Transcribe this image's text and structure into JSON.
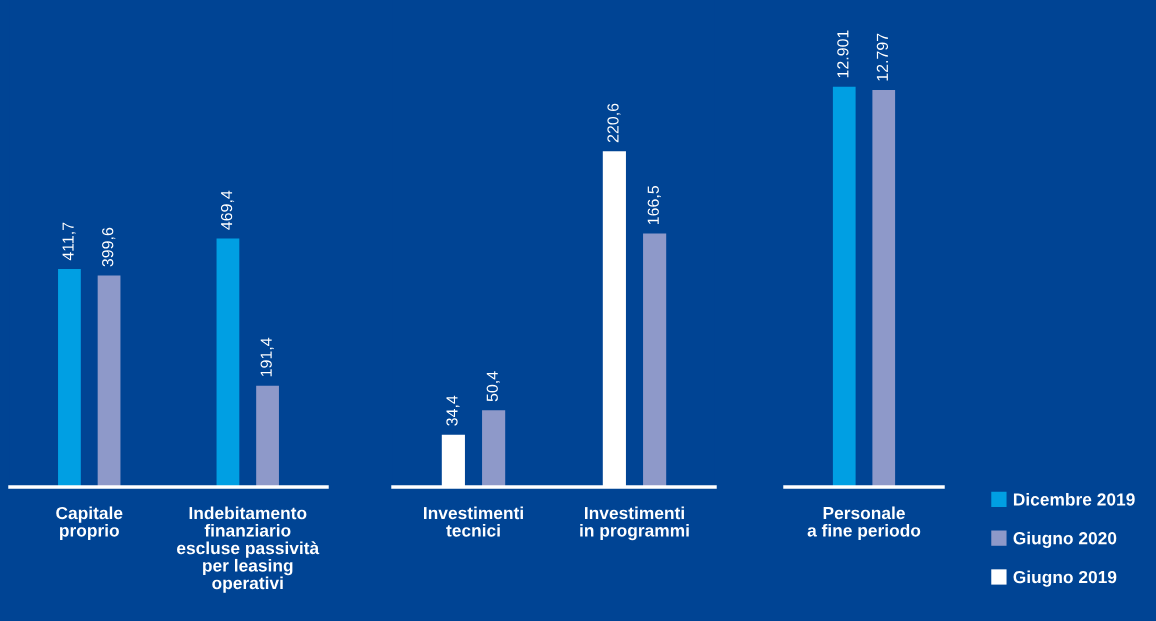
{
  "chart_data": [
    {
      "type": "bar",
      "categories": [
        "Capitale\nproprio",
        "Indebitamento\nfinanziario\nescluse passività\nper leasing\noperativi"
      ],
      "ylim": [
        0,
        920
      ],
      "tick_labels": "x",
      "data_labels": true,
      "legend": "bottom right",
      "series": [
        {
          "name": "Dicembre 2019",
          "color": "#009fe3",
          "values": [
            411.7,
            469.4
          ],
          "value_labels": [
            "411,7",
            "469,4"
          ]
        },
        {
          "name": "Giugno 2020",
          "color": "#8e99c9",
          "values": [
            399.6,
            191.4
          ],
          "value_labels": [
            "399,6",
            "191,4"
          ]
        }
      ]
    },
    {
      "type": "bar",
      "categories": [
        "Investimenti\ntecnici",
        "Investimenti\nin programmi"
      ],
      "ylim": [
        0,
        320
      ],
      "tick_labels": "x",
      "data_labels": true,
      "legend": "bottom right",
      "series": [
        {
          "name": "Giugno 2019",
          "color": "#ffffff",
          "values": [
            34.4,
            220.6
          ],
          "value_labels": [
            "34,4",
            "220,6"
          ]
        },
        {
          "name": "Giugno 2020",
          "color": "#8e99c9",
          "values": [
            50.4,
            166.5
          ],
          "value_labels": [
            "50,4",
            "166,5"
          ]
        }
      ]
    },
    {
      "type": "bar",
      "categories": [
        "Personale\na fine periodo"
      ],
      "ylim": [
        0,
        15700
      ],
      "tick_labels": "x",
      "data_labels": true,
      "legend": "bottom right",
      "series": [
        {
          "name": "Dicembre 2019",
          "color": "#009fe3",
          "values": [
            12901
          ],
          "value_labels": [
            "12.901"
          ]
        },
        {
          "name": "Giugno 2020",
          "color": "#8e99c9",
          "values": [
            12797
          ],
          "value_labels": [
            "12.797"
          ]
        }
      ]
    }
  ]
}
